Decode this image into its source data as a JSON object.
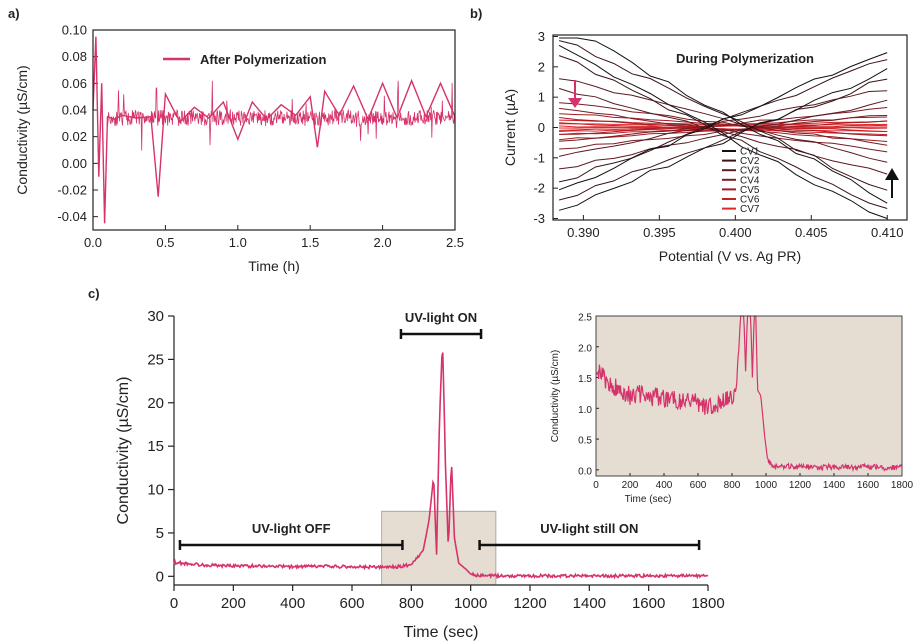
{
  "chart_data": [
    {
      "id": "a",
      "panel_label": "a)",
      "type": "line",
      "xlabel": "Time (h)",
      "ylabel": "Conductivity (µS/cm)",
      "xlim": [
        0,
        2.5
      ],
      "ylim": [
        -0.05,
        0.1
      ],
      "xticks": [
        "0.0",
        "0.5",
        "1.0",
        "1.5",
        "2.0",
        "2.5"
      ],
      "yticks": [
        "-0.04",
        "-0.02",
        "0.00",
        "0.02",
        "0.04",
        "0.06",
        "0.08",
        "0.10"
      ],
      "legend": {
        "position": "top-center",
        "entries": [
          "After Polymerization"
        ]
      },
      "series": [
        {
          "name": "After Polymerization",
          "color": "#d6336c",
          "x": [
            0.0,
            0.02,
            0.04,
            0.06,
            0.08,
            0.1,
            0.15,
            0.2,
            0.3,
            0.4,
            0.45,
            0.5,
            0.6,
            0.7,
            0.8,
            0.9,
            1.0,
            1.1,
            1.2,
            1.3,
            1.4,
            1.5,
            1.55,
            1.6,
            1.7,
            1.8,
            1.9,
            2.0,
            2.1,
            2.2,
            2.3,
            2.4,
            2.5
          ],
          "y": [
            0.04,
            0.095,
            -0.01,
            0.06,
            -0.045,
            0.035,
            0.033,
            0.036,
            0.034,
            0.035,
            -0.025,
            0.052,
            0.031,
            0.042,
            0.034,
            0.046,
            0.018,
            0.046,
            0.033,
            0.044,
            0.036,
            0.05,
            0.012,
            0.054,
            0.036,
            0.058,
            0.033,
            0.06,
            0.034,
            0.062,
            0.035,
            0.06,
            0.035
          ]
        }
      ]
    },
    {
      "id": "b",
      "panel_label": "b)",
      "type": "line",
      "title": "During Polymerization",
      "xlabel": "Potential (V vs. Ag PR)",
      "ylabel": "Current (µA)",
      "xlim": [
        0.388,
        0.4113
      ],
      "ylim": [
        -3.05,
        3.05
      ],
      "xticks": [
        "0.390",
        "0.395",
        "0.400",
        "0.405",
        "0.410"
      ],
      "yticks": [
        "-3",
        "-2",
        "-1",
        "0",
        "1",
        "2",
        "3"
      ],
      "legend": {
        "position": "lower-right",
        "entries": [
          "CV1",
          "CV2",
          "CV3",
          "CV4",
          "CV5",
          "CV6",
          "CV7"
        ]
      },
      "series": [
        {
          "name": "CV1",
          "color": "#111111",
          "slope": 270,
          "hysteresis": 0.35
        },
        {
          "name": "CV2",
          "color": "#3a1418",
          "slope": 235,
          "hysteresis": 0.3
        },
        {
          "name": "CV3",
          "color": "#5a1a20",
          "slope": 130,
          "hysteresis": 0.2
        },
        {
          "name": "CV4",
          "color": "#7a1c24",
          "slope": 65,
          "hysteresis": 0.12
        },
        {
          "name": "CV5",
          "color": "#a01c22",
          "slope": 35,
          "hysteresis": 0.08
        },
        {
          "name": "CV6",
          "color": "#c81e22",
          "slope": 18,
          "hysteresis": 0.06
        },
        {
          "name": "CV7",
          "color": "#e0262a",
          "slope": 8,
          "hysteresis": 0.05
        }
      ],
      "arrows": [
        {
          "color": "#d6336c",
          "direction": "down"
        },
        {
          "color": "#111111",
          "direction": "up"
        }
      ]
    },
    {
      "id": "c",
      "panel_label": "c)",
      "type": "line",
      "xlabel": "Time (sec)",
      "ylabel": "Conductivity (µS/cm)",
      "xlim": [
        0,
        1800
      ],
      "ylim": [
        -1,
        30
      ],
      "xticks": [
        "0",
        "200",
        "400",
        "600",
        "800",
        "1000",
        "1200",
        "1400",
        "1600",
        "1800"
      ],
      "yticks": [
        "0",
        "5",
        "10",
        "15",
        "20",
        "25",
        "30"
      ],
      "annotations": [
        {
          "text": "UV-light OFF",
          "x0": 20,
          "x1": 770
        },
        {
          "text": "UV-light ON",
          "x0": 765,
          "x1": 1035
        },
        {
          "text": "UV-light still ON",
          "x0": 1030,
          "x1": 1770
        }
      ],
      "highlight_region": {
        "x0": 700,
        "x1": 1085,
        "y0": -1,
        "y1": 7.5,
        "color": "#e5ddd2"
      },
      "series": [
        {
          "color": "#d6336c",
          "x": [
            0,
            100,
            200,
            300,
            400,
            500,
            600,
            700,
            760,
            800,
            840,
            860,
            875,
            885,
            895,
            905,
            915,
            925,
            935,
            945,
            960,
            985,
            1000,
            1020,
            1100,
            1200,
            1300,
            1400,
            1500,
            1600,
            1700,
            1800
          ],
          "y": [
            1.6,
            1.3,
            1.2,
            1.2,
            1.1,
            1.15,
            1.1,
            1.05,
            1.1,
            1.4,
            3.0,
            6.5,
            11.5,
            2.5,
            18.0,
            27.2,
            13.0,
            3.0,
            13.5,
            4.5,
            1.5,
            0.8,
            0.25,
            0.1,
            0.05,
            0.06,
            0.04,
            0.05,
            0.05,
            0.04,
            0.05,
            0.05
          ]
        }
      ]
    },
    {
      "id": "c-inset",
      "type": "line",
      "xlabel": "Time (sec)",
      "ylabel": "Conductivity (µS/cm)",
      "xlim": [
        0,
        1800
      ],
      "ylim": [
        -0.1,
        2.5
      ],
      "xticks": [
        "0",
        "200",
        "400",
        "600",
        "800",
        "1000",
        "1200",
        "1400",
        "1600",
        "1800"
      ],
      "yticks": [
        "0.0",
        "0.5",
        "1.0",
        "1.5",
        "2.0",
        "2.5"
      ],
      "background": "#e5ddd2",
      "series": [
        {
          "color": "#d6336c",
          "x": [
            0,
            50,
            100,
            150,
            200,
            250,
            300,
            350,
            400,
            450,
            500,
            550,
            600,
            650,
            700,
            750,
            800,
            830,
            850,
            870,
            880,
            890,
            900,
            910,
            920,
            930,
            940,
            950,
            970,
            990,
            1010,
            1050,
            1100,
            1200,
            1300,
            1400,
            1500,
            1600,
            1700,
            1800
          ],
          "y": [
            1.7,
            1.45,
            1.35,
            1.3,
            1.2,
            1.25,
            1.15,
            1.2,
            1.15,
            1.2,
            1.1,
            1.15,
            1.1,
            1.0,
            1.05,
            1.1,
            1.2,
            1.4,
            2.5,
            2.5,
            1.6,
            2.5,
            2.5,
            2.5,
            1.5,
            2.5,
            2.5,
            1.3,
            1.2,
            0.6,
            0.15,
            0.05,
            0.05,
            0.06,
            0.03,
            0.05,
            0.04,
            0.05,
            0.03,
            0.05
          ]
        }
      ]
    }
  ]
}
